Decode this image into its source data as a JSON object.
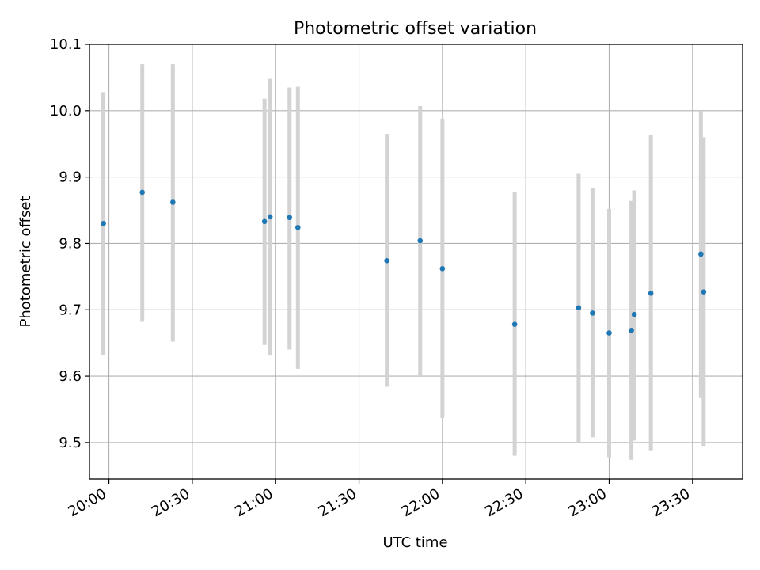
{
  "chart_data": {
    "type": "scatter",
    "title": "Photometric offset variation",
    "xlabel": "UTC time",
    "ylabel": "Photometric offset",
    "x_ticks": [
      "20:00",
      "20:30",
      "21:00",
      "21:30",
      "22:00",
      "22:30",
      "23:00",
      "23:30"
    ],
    "xlim": [
      "19:53",
      "23:48"
    ],
    "y_ticks": [
      "9.5",
      "9.6",
      "9.7",
      "9.8",
      "9.9",
      "10.0",
      "10.1"
    ],
    "ylim": [
      9.445,
      10.1
    ],
    "grid": true,
    "error_bar_color": "#d3d3d3",
    "marker_color": "#1f77b4",
    "points": [
      {
        "time": "19:58",
        "value": 9.83,
        "low": 9.632,
        "high": 10.028
      },
      {
        "time": "20:12",
        "value": 9.877,
        "low": 9.682,
        "high": 10.07
      },
      {
        "time": "20:23",
        "value": 9.862,
        "low": 9.652,
        "high": 10.07
      },
      {
        "time": "20:56",
        "value": 9.833,
        "low": 9.647,
        "high": 10.018
      },
      {
        "time": "20:58",
        "value": 9.84,
        "low": 9.631,
        "high": 10.048
      },
      {
        "time": "21:05",
        "value": 9.839,
        "low": 9.64,
        "high": 10.035
      },
      {
        "time": "21:08",
        "value": 9.824,
        "low": 9.611,
        "high": 10.036
      },
      {
        "time": "21:40",
        "value": 9.774,
        "low": 9.584,
        "high": 9.965
      },
      {
        "time": "21:52",
        "value": 9.804,
        "low": 9.6,
        "high": 10.007
      },
      {
        "time": "22:00",
        "value": 9.762,
        "low": 9.537,
        "high": 9.988
      },
      {
        "time": "22:26",
        "value": 9.678,
        "low": 9.48,
        "high": 9.877
      },
      {
        "time": "22:49",
        "value": 9.703,
        "low": 9.5,
        "high": 9.905
      },
      {
        "time": "22:54",
        "value": 9.695,
        "low": 9.508,
        "high": 9.884
      },
      {
        "time": "23:00",
        "value": 9.665,
        "low": 9.478,
        "high": 9.852
      },
      {
        "time": "23:08",
        "value": 9.669,
        "low": 9.474,
        "high": 9.864
      },
      {
        "time": "23:09",
        "value": 9.693,
        "low": 9.503,
        "high": 9.88
      },
      {
        "time": "23:15",
        "value": 9.725,
        "low": 9.487,
        "high": 9.963
      },
      {
        "time": "23:33",
        "value": 9.784,
        "low": 9.567,
        "high": 10.0
      },
      {
        "time": "23:34",
        "value": 9.727,
        "low": 9.495,
        "high": 9.96
      }
    ]
  }
}
